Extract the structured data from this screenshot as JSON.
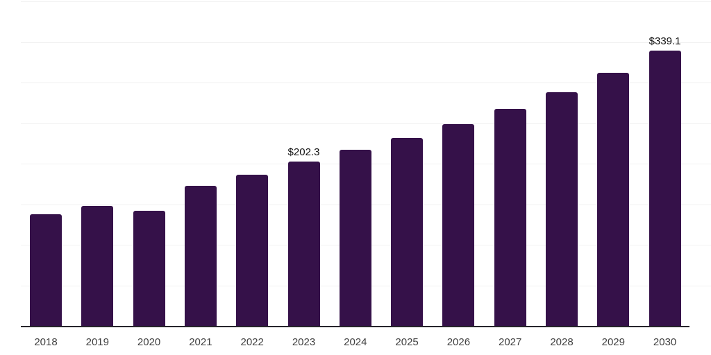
{
  "chart_data": {
    "type": "bar",
    "categories": [
      "2018",
      "2019",
      "2020",
      "2021",
      "2022",
      "2023",
      "2024",
      "2025",
      "2026",
      "2027",
      "2028",
      "2029",
      "2030"
    ],
    "values": [
      137.6,
      148.3,
      142.3,
      172.4,
      186.0,
      202.3,
      217.2,
      231.4,
      248.4,
      267.6,
      288.1,
      312.2,
      339.1
    ],
    "data_labels": [
      {
        "category": "2023",
        "index": 5,
        "text": "$202.3"
      },
      {
        "category": "2030",
        "index": 12,
        "text": "$339.1"
      }
    ],
    "title": "",
    "xlabel": "",
    "ylabel": "",
    "ylim": [
      0,
      400
    ],
    "grid_step": 50,
    "grid": true,
    "legend": false,
    "y_tick_labels_visible": false,
    "colors": {
      "bar": "#351149",
      "grid": "#f1f1f1",
      "axis": "#26242b",
      "tick_text": "#404040",
      "data_label_text": "#111111",
      "background": "#ffffff"
    }
  }
}
